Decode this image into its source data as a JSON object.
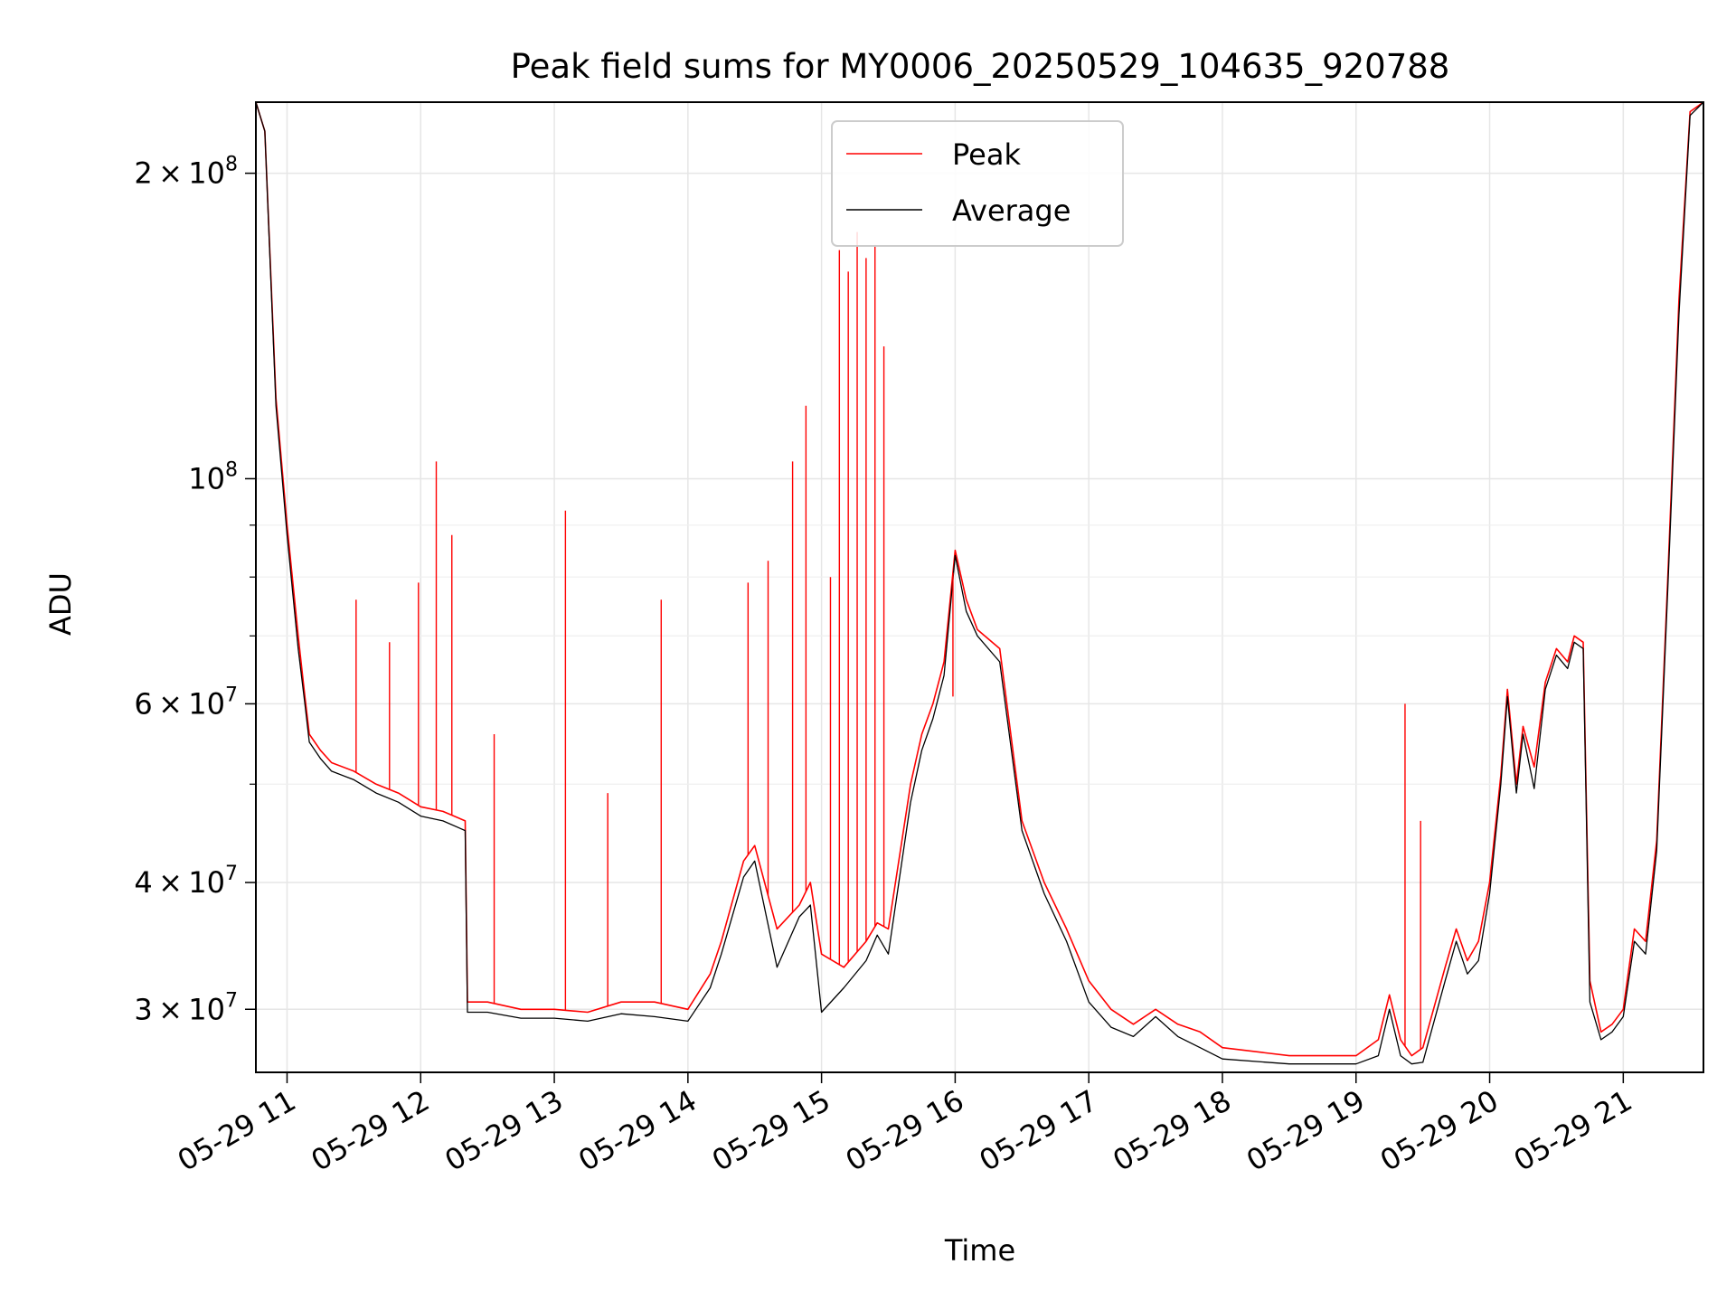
{
  "chart_data": {
    "type": "line",
    "title": "Peak field sums for MY0006_20250529_104635_920788",
    "xlabel": "Time",
    "ylabel": "ADU",
    "yscale": "log",
    "xlim": [
      "2025-05-29 10:46",
      "2025-05-29 21:36"
    ],
    "ylim": [
      26000000,
      235000000
    ],
    "grid": true,
    "legend_position": "top-center",
    "x_ticks": [
      {
        "value": "2025-05-29 11:00",
        "label": "05-29 11"
      },
      {
        "value": "2025-05-29 12:00",
        "label": "05-29 12"
      },
      {
        "value": "2025-05-29 13:00",
        "label": "05-29 13"
      },
      {
        "value": "2025-05-29 14:00",
        "label": "05-29 14"
      },
      {
        "value": "2025-05-29 15:00",
        "label": "05-29 15"
      },
      {
        "value": "2025-05-29 16:00",
        "label": "05-29 16"
      },
      {
        "value": "2025-05-29 17:00",
        "label": "05-29 17"
      },
      {
        "value": "2025-05-29 18:00",
        "label": "05-29 18"
      },
      {
        "value": "2025-05-29 19:00",
        "label": "05-29 19"
      },
      {
        "value": "2025-05-29 20:00",
        "label": "05-29 20"
      },
      {
        "value": "2025-05-29 21:00",
        "label": "05-29 21"
      }
    ],
    "y_ticks": [
      {
        "value": 30000000,
        "mantissa": "3",
        "exponent": "7"
      },
      {
        "value": 40000000,
        "mantissa": "4",
        "exponent": "7"
      },
      {
        "value": 60000000,
        "mantissa": "6",
        "exponent": "7"
      },
      {
        "value": 100000000,
        "mantissa": "",
        "exponent": "8"
      },
      {
        "value": 200000000,
        "mantissa": "2",
        "exponent": "8"
      }
    ],
    "y_minor_ticks": [
      50000000,
      70000000,
      80000000,
      90000000
    ],
    "series": [
      {
        "name": "Peak",
        "color": "#ff0000",
        "x": [
          "2025-05-29 10:46",
          "2025-05-29 10:50",
          "2025-05-29 10:55",
          "2025-05-29 11:00",
          "2025-05-29 11:05",
          "2025-05-29 11:08",
          "2025-05-29 11:10",
          "2025-05-29 11:15",
          "2025-05-29 11:20",
          "2025-05-29 11:30",
          "2025-05-29 11:40",
          "2025-05-29 11:50",
          "2025-05-29 12:00",
          "2025-05-29 12:10",
          "2025-05-29 12:20",
          "2025-05-29 12:21",
          "2025-05-29 12:30",
          "2025-05-29 12:45",
          "2025-05-29 13:00",
          "2025-05-29 13:15",
          "2025-05-29 13:30",
          "2025-05-29 13:45",
          "2025-05-29 14:00",
          "2025-05-29 14:10",
          "2025-05-29 14:15",
          "2025-05-29 14:25",
          "2025-05-29 14:30",
          "2025-05-29 14:40",
          "2025-05-29 14:50",
          "2025-05-29 14:55",
          "2025-05-29 15:00",
          "2025-05-29 15:10",
          "2025-05-29 15:20",
          "2025-05-29 15:25",
          "2025-05-29 15:30",
          "2025-05-29 15:40",
          "2025-05-29 15:45",
          "2025-05-29 15:50",
          "2025-05-29 15:55",
          "2025-05-29 16:00",
          "2025-05-29 16:05",
          "2025-05-29 16:10",
          "2025-05-29 16:20",
          "2025-05-29 16:30",
          "2025-05-29 16:40",
          "2025-05-29 16:50",
          "2025-05-29 17:00",
          "2025-05-29 17:10",
          "2025-05-29 17:20",
          "2025-05-29 17:30",
          "2025-05-29 17:40",
          "2025-05-29 17:50",
          "2025-05-29 18:00",
          "2025-05-29 18:30",
          "2025-05-29 19:00",
          "2025-05-29 19:10",
          "2025-05-29 19:15",
          "2025-05-29 19:20",
          "2025-05-29 19:25",
          "2025-05-29 19:30",
          "2025-05-29 19:40",
          "2025-05-29 19:45",
          "2025-05-29 19:50",
          "2025-05-29 19:55",
          "2025-05-29 20:00",
          "2025-05-29 20:05",
          "2025-05-29 20:08",
          "2025-05-29 20:12",
          "2025-05-29 20:15",
          "2025-05-29 20:20",
          "2025-05-29 20:25",
          "2025-05-29 20:30",
          "2025-05-29 20:35",
          "2025-05-29 20:38",
          "2025-05-29 20:42",
          "2025-05-29 20:45",
          "2025-05-29 20:50",
          "2025-05-29 20:55",
          "2025-05-29 21:00",
          "2025-05-29 21:05",
          "2025-05-29 21:10",
          "2025-05-29 21:15",
          "2025-05-29 21:20",
          "2025-05-29 21:25",
          "2025-05-29 21:30",
          "2025-05-29 21:36"
        ],
        "y": [
          235000000,
          220000000,
          120000000,
          90000000,
          70000000,
          61000000,
          56000000,
          54000000,
          52500000,
          51500000,
          50000000,
          49000000,
          47500000,
          47000000,
          46000000,
          30500000,
          30500000,
          30000000,
          30000000,
          29800000,
          30500000,
          30500000,
          30000000,
          32500000,
          35000000,
          42000000,
          43500000,
          36000000,
          38000000,
          40000000,
          34000000,
          33000000,
          35000000,
          36500000,
          36000000,
          50000000,
          56000000,
          60000000,
          66000000,
          85000000,
          76000000,
          71000000,
          68000000,
          46000000,
          40000000,
          36000000,
          32000000,
          30000000,
          29000000,
          30000000,
          29000000,
          28500000,
          27500000,
          27000000,
          27000000,
          28000000,
          31000000,
          28000000,
          27000000,
          27500000,
          33000000,
          36000000,
          33500000,
          35000000,
          40000000,
          51000000,
          62000000,
          50000000,
          57000000,
          52000000,
          63000000,
          68000000,
          66000000,
          70000000,
          69000000,
          32000000,
          28500000,
          29000000,
          30000000,
          36000000,
          35000000,
          44000000,
          80000000,
          150000000,
          230000000,
          235000000
        ]
      },
      {
        "name": "Average",
        "color": "#000000",
        "x": [
          "2025-05-29 10:46",
          "2025-05-29 10:50",
          "2025-05-29 10:55",
          "2025-05-29 11:00",
          "2025-05-29 11:05",
          "2025-05-29 11:08",
          "2025-05-29 11:10",
          "2025-05-29 11:15",
          "2025-05-29 11:20",
          "2025-05-29 11:30",
          "2025-05-29 11:40",
          "2025-05-29 11:50",
          "2025-05-29 12:00",
          "2025-05-29 12:10",
          "2025-05-29 12:20",
          "2025-05-29 12:21",
          "2025-05-29 12:30",
          "2025-05-29 12:45",
          "2025-05-29 13:00",
          "2025-05-29 13:15",
          "2025-05-29 13:30",
          "2025-05-29 13:45",
          "2025-05-29 14:00",
          "2025-05-29 14:10",
          "2025-05-29 14:15",
          "2025-05-29 14:25",
          "2025-05-29 14:30",
          "2025-05-29 14:40",
          "2025-05-29 14:50",
          "2025-05-29 14:55",
          "2025-05-29 15:00",
          "2025-05-29 15:10",
          "2025-05-29 15:20",
          "2025-05-29 15:25",
          "2025-05-29 15:30",
          "2025-05-29 15:40",
          "2025-05-29 15:45",
          "2025-05-29 15:50",
          "2025-05-29 15:55",
          "2025-05-29 16:00",
          "2025-05-29 16:05",
          "2025-05-29 16:10",
          "2025-05-29 16:20",
          "2025-05-29 16:30",
          "2025-05-29 16:40",
          "2025-05-29 16:50",
          "2025-05-29 17:00",
          "2025-05-29 17:10",
          "2025-05-29 17:20",
          "2025-05-29 17:30",
          "2025-05-29 17:40",
          "2025-05-29 17:50",
          "2025-05-29 18:00",
          "2025-05-29 18:30",
          "2025-05-29 19:00",
          "2025-05-29 19:10",
          "2025-05-29 19:15",
          "2025-05-29 19:20",
          "2025-05-29 19:25",
          "2025-05-29 19:30",
          "2025-05-29 19:40",
          "2025-05-29 19:45",
          "2025-05-29 19:50",
          "2025-05-29 19:55",
          "2025-05-29 20:00",
          "2025-05-29 20:05",
          "2025-05-29 20:08",
          "2025-05-29 20:12",
          "2025-05-29 20:15",
          "2025-05-29 20:20",
          "2025-05-29 20:25",
          "2025-05-29 20:30",
          "2025-05-29 20:35",
          "2025-05-29 20:38",
          "2025-05-29 20:42",
          "2025-05-29 20:45",
          "2025-05-29 20:50",
          "2025-05-29 20:55",
          "2025-05-29 21:00",
          "2025-05-29 21:05",
          "2025-05-29 21:10",
          "2025-05-29 21:15",
          "2025-05-29 21:20",
          "2025-05-29 21:25",
          "2025-05-29 21:30",
          "2025-05-29 21:36"
        ],
        "y": [
          235000000,
          220000000,
          118000000,
          88000000,
          68000000,
          60000000,
          55000000,
          53000000,
          51500000,
          50500000,
          49000000,
          48000000,
          46500000,
          46000000,
          45000000,
          29800000,
          29800000,
          29400000,
          29400000,
          29200000,
          29700000,
          29500000,
          29200000,
          31500000,
          34000000,
          40500000,
          42000000,
          33000000,
          37000000,
          38000000,
          29800000,
          31500000,
          33500000,
          35500000,
          34000000,
          48000000,
          54000000,
          58000000,
          64000000,
          84000000,
          74000000,
          70000000,
          66000000,
          45000000,
          39000000,
          35000000,
          30500000,
          28800000,
          28200000,
          29500000,
          28200000,
          27500000,
          26800000,
          26500000,
          26500000,
          27000000,
          30000000,
          27000000,
          26500000,
          26600000,
          32000000,
          35000000,
          32500000,
          33500000,
          39000000,
          50000000,
          61000000,
          49000000,
          56000000,
          49500000,
          62000000,
          67000000,
          65000000,
          69000000,
          68000000,
          30500000,
          28000000,
          28500000,
          29500000,
          35000000,
          34000000,
          43000000,
          78000000,
          145000000,
          228000000,
          235000000
        ]
      }
    ],
    "peak_spikes": [
      {
        "x": "2025-05-29 11:31",
        "y": 76000000
      },
      {
        "x": "2025-05-29 11:46",
        "y": 69000000
      },
      {
        "x": "2025-05-29 11:59",
        "y": 79000000
      },
      {
        "x": "2025-05-29 12:07",
        "y": 104000000
      },
      {
        "x": "2025-05-29 12:14",
        "y": 88000000
      },
      {
        "x": "2025-05-29 12:33",
        "y": 56000000
      },
      {
        "x": "2025-05-29 13:05",
        "y": 93000000
      },
      {
        "x": "2025-05-29 13:24",
        "y": 49000000
      },
      {
        "x": "2025-05-29 13:48",
        "y": 76000000
      },
      {
        "x": "2025-05-29 14:27",
        "y": 79000000
      },
      {
        "x": "2025-05-29 14:36",
        "y": 83000000
      },
      {
        "x": "2025-05-29 14:47",
        "y": 104000000
      },
      {
        "x": "2025-05-29 14:53",
        "y": 118000000
      },
      {
        "x": "2025-05-29 15:04",
        "y": 80000000
      },
      {
        "x": "2025-05-29 15:08",
        "y": 168000000
      },
      {
        "x": "2025-05-29 15:12",
        "y": 160000000
      },
      {
        "x": "2025-05-29 15:16",
        "y": 175000000
      },
      {
        "x": "2025-05-29 15:20",
        "y": 165000000
      },
      {
        "x": "2025-05-29 15:24",
        "y": 170000000
      },
      {
        "x": "2025-05-29 15:28",
        "y": 135000000
      },
      {
        "x": "2025-05-29 15:59",
        "y": 61000000
      },
      {
        "x": "2025-05-29 19:22",
        "y": 60000000
      },
      {
        "x": "2025-05-29 19:29",
        "y": 46000000
      }
    ]
  },
  "legend": {
    "items": [
      {
        "label": "Peak",
        "color": "#ff0000"
      },
      {
        "label": "Average",
        "color": "#000000"
      }
    ]
  }
}
